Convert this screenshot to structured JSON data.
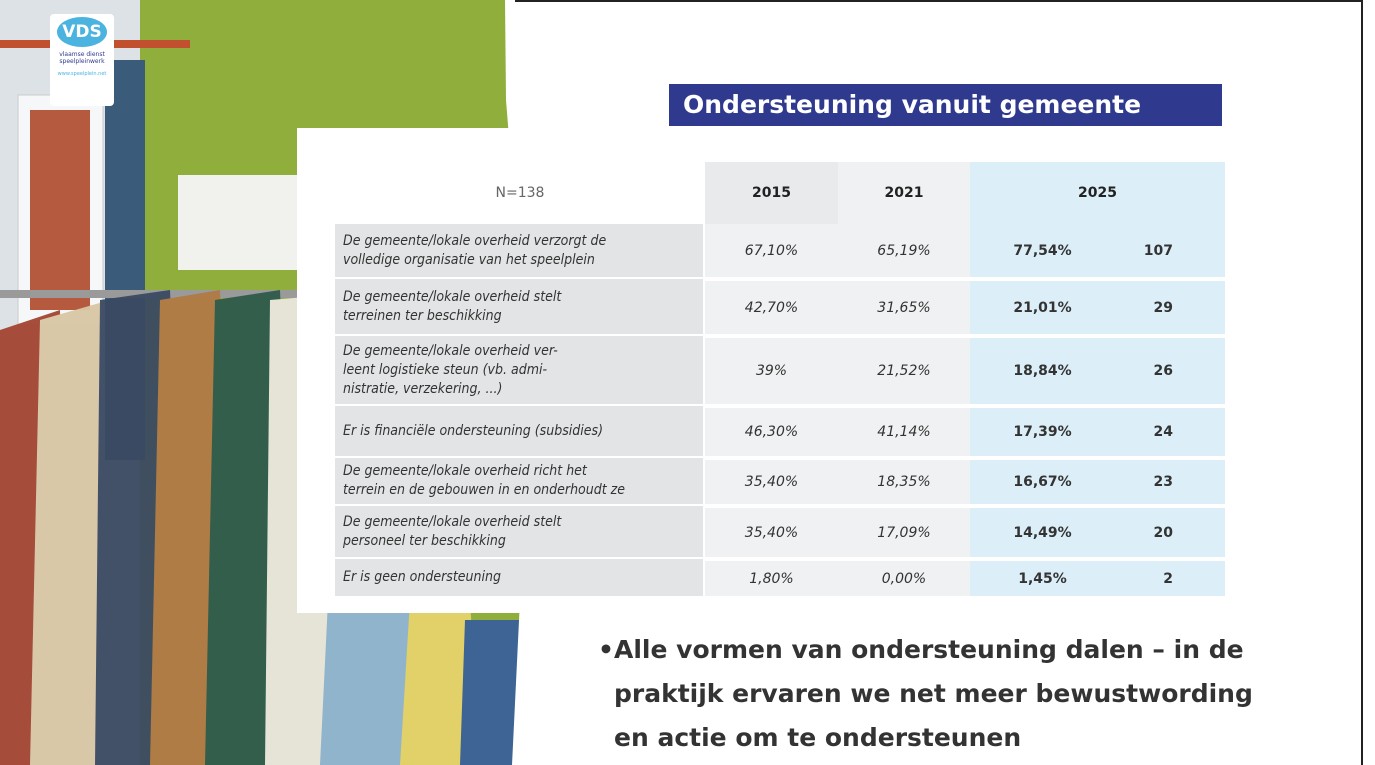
{
  "logo": {
    "mark": "VDS",
    "name_lines": [
      "vlaamse dienst",
      "speelpleinwerk"
    ],
    "url": "www.speelplein.net"
  },
  "title": "Ondersteuning vanuit gemeente",
  "table": {
    "header": [
      "N=138",
      "2015",
      "2021",
      "2025"
    ],
    "rows": [
      [
        [
          "De gemeente/lokale overheid verzorgt de",
          "volledige organisatie van het speelplein"
        ],
        "67,10%",
        "65,19%",
        "77,54%",
        "107"
      ],
      [
        [
          "De gemeente/lokale overheid stelt",
          "terreinen ter beschikking"
        ],
        "42,70%",
        "31,65%",
        "21,01%",
        "29"
      ],
      [
        [
          "De gemeente/lokale overheid ver-",
          "leent logistieke steun (vb. admi-",
          "nistratie, verzekering, ...)"
        ],
        "39%",
        "21,52%",
        "18,84%",
        "26"
      ],
      [
        [
          "Er is financiële ondersteuning (subsidies)"
        ],
        "46,30%",
        "41,14%",
        "17,39%",
        "24"
      ],
      [
        [
          "De gemeente/lokale overheid richt het",
          "terrein en de gebouwen in en onderhoudt ze"
        ],
        "35,40%",
        "18,35%",
        "16,67%",
        "23"
      ],
      [
        [
          "De gemeente/lokale overheid stelt",
          "personeel ter beschikking"
        ],
        "35,40%",
        "17,09%",
        "14,49%",
        "20"
      ],
      [
        [
          "Er is geen ondersteuning"
        ],
        "1,80%",
        "0,00%",
        "1,45%",
        "2"
      ]
    ]
  },
  "bullet": [
    "Alle vormen van ondersteuning dalen – in de",
    "praktijk ervaren we net meer bewustwording",
    "en actie om te ondersteunen"
  ]
}
